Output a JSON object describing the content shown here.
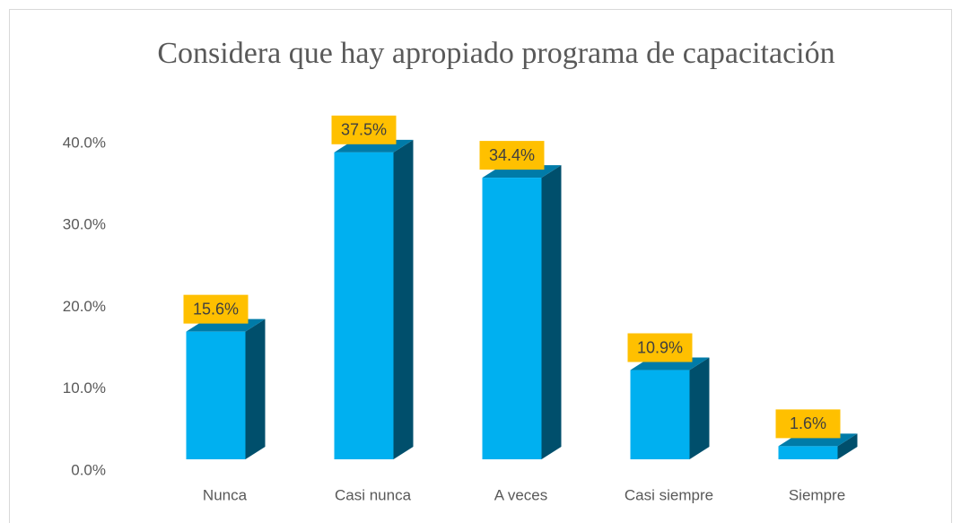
{
  "chart_data": {
    "type": "bar3d",
    "title": "Considera que hay apropiado programa de capacitación",
    "categories": [
      "Nunca",
      "Casi nunca",
      "A veces",
      "Casi siempre",
      "Siempre"
    ],
    "values": [
      15.6,
      37.5,
      34.4,
      10.9,
      1.6
    ],
    "value_labels": [
      "15.6%",
      "37.5%",
      "34.4%",
      "10.9%",
      "1.6%"
    ],
    "color": "#00b0f0",
    "label_color": "#ffc000",
    "ylim": [
      0,
      40
    ],
    "yticks": [
      {
        "value": 0,
        "label": "0.0%"
      },
      {
        "value": 10,
        "label": "10.0%"
      },
      {
        "value": 20,
        "label": "20.0%"
      },
      {
        "value": 30,
        "label": "30.0%"
      },
      {
        "value": 40,
        "label": "40.0%"
      }
    ],
    "grid": false
  }
}
